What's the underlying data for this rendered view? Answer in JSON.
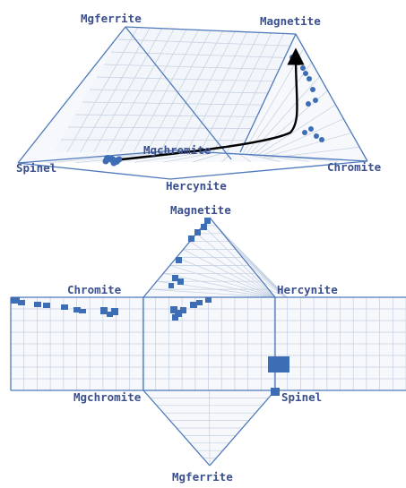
{
  "prism_3d": {
    "vertices": {
      "mgferrite": "Mgferrite",
      "magnetite": "Magnetite",
      "spinel": "Spinel",
      "mgchromite": "Mgchromite",
      "hercynite": "Hercynite",
      "chromite": "Chromite"
    },
    "trend_arrow_color": "#000000"
  },
  "net_2d": {
    "vertices": {
      "magnetite": "Magnetite",
      "chromite": "Chromite",
      "hercynite": "Hercynite",
      "mgchromite": "Mgchromite",
      "spinel": "Spinel",
      "mgferrite": "Mgferrite"
    }
  },
  "colors": {
    "edge": "#4f79bc",
    "grid": "#c3cfe0",
    "data_points": "#3d6db5",
    "label": "#3a4f8c"
  }
}
